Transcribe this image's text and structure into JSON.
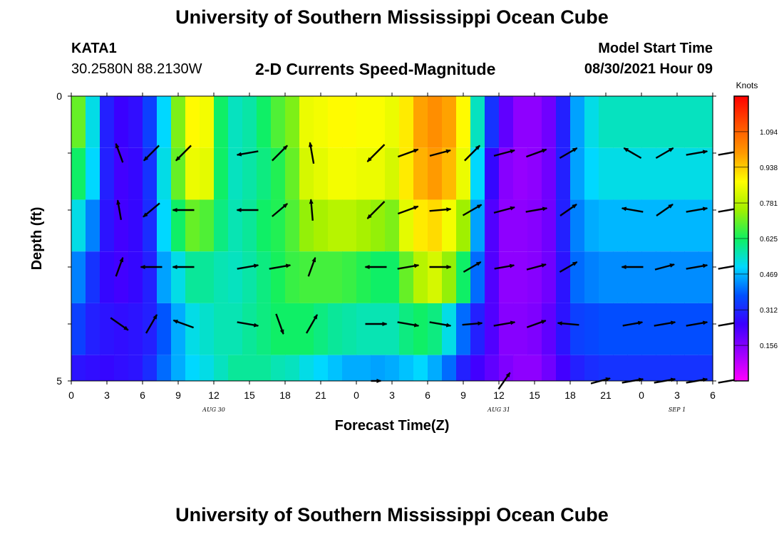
{
  "header": {
    "title": "University of Southern Mississippi Ocean Cube",
    "station_id": "KATA1",
    "coordinates": "30.2580N  88.2130W",
    "subtitle": "2-D Currents Speed-Magnitude",
    "model_start_label": "Model Start Time",
    "model_start_value": "08/30/2021 Hour 09",
    "footer_title": "University of Southern Mississippi Ocean Cube"
  },
  "colors": {
    "colormap": [
      "#ff00ff",
      "#9a00ff",
      "#3a00ff",
      "#0050ff",
      "#00d8ff",
      "#10f060",
      "#a0f000",
      "#ffff00",
      "#ff9a00",
      "#ff5000",
      "#ff0000"
    ]
  },
  "chart_data": {
    "type": "heatmap",
    "title": "2-D Currents Speed-Magnitude",
    "xlabel": "Forecast Time(Z)",
    "ylabel": "Depth (ft)",
    "x_ticks": [
      "0",
      "3",
      "6",
      "9",
      "12",
      "15",
      "18",
      "21",
      "0",
      "3",
      "6",
      "9",
      "12",
      "15",
      "18",
      "21",
      "0",
      "3",
      "6"
    ],
    "date_labels": [
      {
        "text": "AUG 30",
        "tick_index": 4
      },
      {
        "text": "AUG 31",
        "tick_index": 12
      },
      {
        "text": "SEP 1",
        "tick_index": 17
      }
    ],
    "y_ticks": [
      "0",
      "",
      "",
      "",
      "",
      "5"
    ],
    "ylim": [
      0,
      5
    ],
    "colorbar": {
      "label": "Knots",
      "range": [
        0.0,
        1.25
      ],
      "ticks": [
        "1.094",
        "0.938",
        "0.781",
        "0.625",
        "0.469",
        "0.312",
        "0.156"
      ]
    },
    "speed_knots": [
      [
        0.7,
        0.52,
        0.3,
        0.25,
        0.27,
        0.35,
        0.5,
        0.72,
        0.88,
        0.86,
        0.62,
        0.55,
        0.57,
        0.62,
        0.68,
        0.72,
        0.85,
        0.86,
        0.88,
        0.88,
        0.87,
        0.87,
        0.85,
        0.9,
        0.99,
        1.02,
        0.99,
        0.88,
        0.55,
        0.33,
        0.2,
        0.14,
        0.14,
        0.18,
        0.3,
        0.45,
        0.52,
        0.55,
        0.55,
        0.55,
        0.55,
        0.55,
        0.55,
        0.55,
        0.55
      ],
      [
        0.62,
        0.5,
        0.3,
        0.24,
        0.26,
        0.33,
        0.52,
        0.7,
        0.85,
        0.84,
        0.62,
        0.55,
        0.57,
        0.6,
        0.64,
        0.7,
        0.82,
        0.84,
        0.86,
        0.86,
        0.85,
        0.85,
        0.82,
        0.9,
        0.97,
        1.0,
        0.96,
        0.85,
        0.5,
        0.26,
        0.15,
        0.13,
        0.14,
        0.18,
        0.3,
        0.45,
        0.5,
        0.52,
        0.52,
        0.52,
        0.52,
        0.52,
        0.52,
        0.52,
        0.52
      ],
      [
        0.52,
        0.42,
        0.28,
        0.24,
        0.26,
        0.32,
        0.5,
        0.62,
        0.7,
        0.68,
        0.6,
        0.56,
        0.58,
        0.62,
        0.64,
        0.68,
        0.74,
        0.76,
        0.78,
        0.78,
        0.76,
        0.74,
        0.72,
        0.84,
        0.9,
        0.92,
        0.86,
        0.75,
        0.45,
        0.22,
        0.14,
        0.14,
        0.15,
        0.18,
        0.3,
        0.42,
        0.46,
        0.47,
        0.47,
        0.47,
        0.47,
        0.47,
        0.47,
        0.47,
        0.47
      ],
      [
        0.42,
        0.33,
        0.26,
        0.24,
        0.26,
        0.3,
        0.45,
        0.52,
        0.58,
        0.58,
        0.56,
        0.55,
        0.57,
        0.6,
        0.63,
        0.66,
        0.67,
        0.67,
        0.67,
        0.66,
        0.64,
        0.62,
        0.62,
        0.7,
        0.78,
        0.82,
        0.74,
        0.62,
        0.4,
        0.22,
        0.14,
        0.14,
        0.15,
        0.18,
        0.28,
        0.4,
        0.42,
        0.43,
        0.43,
        0.43,
        0.43,
        0.43,
        0.43,
        0.43,
        0.43
      ],
      [
        0.35,
        0.3,
        0.28,
        0.27,
        0.28,
        0.3,
        0.38,
        0.46,
        0.52,
        0.54,
        0.56,
        0.56,
        0.58,
        0.6,
        0.62,
        0.62,
        0.62,
        0.6,
        0.58,
        0.57,
        0.56,
        0.56,
        0.56,
        0.6,
        0.62,
        0.6,
        0.52,
        0.4,
        0.3,
        0.22,
        0.15,
        0.15,
        0.16,
        0.2,
        0.28,
        0.35,
        0.36,
        0.37,
        0.37,
        0.37,
        0.37,
        0.37,
        0.37,
        0.37,
        0.37
      ],
      [
        0.28,
        0.27,
        0.26,
        0.27,
        0.28,
        0.32,
        0.4,
        0.46,
        0.5,
        0.52,
        0.55,
        0.58,
        0.58,
        0.58,
        0.56,
        0.55,
        0.52,
        0.5,
        0.48,
        0.46,
        0.46,
        0.45,
        0.46,
        0.48,
        0.5,
        0.46,
        0.4,
        0.3,
        0.24,
        0.2,
        0.16,
        0.14,
        0.14,
        0.18,
        0.24,
        0.3,
        0.32,
        0.33,
        0.33,
        0.33,
        0.33,
        0.33,
        0.33,
        0.33,
        0.33
      ]
    ],
    "vectors": [
      {
        "row": 1,
        "t": [
          1,
          2,
          3,
          5,
          6,
          7,
          9,
          10,
          11,
          12,
          13,
          14,
          15,
          17,
          18,
          19,
          20
        ],
        "dir_deg": [
          110,
          225,
          225,
          190,
          45,
          100,
          225,
          20,
          15,
          45,
          15,
          20,
          30,
          150,
          30,
          10,
          10
        ],
        "len": [
          28,
          30,
          30,
          30,
          30,
          30,
          34,
          30,
          30,
          30,
          30,
          30,
          28,
          28,
          28,
          30,
          30
        ]
      },
      {
        "row": 2,
        "t": [
          1,
          2,
          3,
          5,
          6,
          7,
          9,
          10,
          11,
          12,
          13,
          14,
          15,
          17,
          18,
          19,
          20
        ],
        "dir_deg": [
          100,
          220,
          180,
          180,
          40,
          95,
          225,
          20,
          5,
          30,
          15,
          10,
          35,
          170,
          35,
          10,
          10
        ],
        "len": [
          28,
          30,
          30,
          30,
          28,
          30,
          34,
          30,
          30,
          30,
          30,
          30,
          28,
          30,
          28,
          30,
          30
        ]
      },
      {
        "row": 3,
        "t": [
          1,
          2,
          3,
          5,
          6,
          7,
          9,
          10,
          11,
          12,
          13,
          14,
          15,
          17,
          18,
          19,
          20
        ],
        "dir_deg": [
          70,
          180,
          180,
          10,
          10,
          70,
          180,
          10,
          0,
          30,
          10,
          15,
          30,
          180,
          15,
          10,
          10
        ],
        "len": [
          28,
          30,
          30,
          30,
          30,
          28,
          30,
          30,
          30,
          28,
          28,
          28,
          28,
          30,
          28,
          30,
          30
        ]
      },
      {
        "row": 4,
        "t": [
          1,
          2,
          3,
          5,
          6,
          7,
          9,
          10,
          11,
          12,
          13,
          14,
          15,
          17,
          18,
          19,
          20
        ],
        "dir_deg": [
          -35,
          60,
          160,
          -10,
          -70,
          60,
          0,
          -10,
          -10,
          5,
          10,
          20,
          175,
          10,
          10,
          10,
          10
        ],
        "len": [
          30,
          30,
          30,
          30,
          30,
          30,
          30,
          30,
          30,
          28,
          30,
          28,
          30,
          28,
          30,
          30,
          30
        ]
      },
      {
        "row": 5,
        "t": [
          9,
          13,
          16,
          17,
          18,
          19,
          20
        ],
        "dir_deg": [
          0,
          55,
          15,
          10,
          10,
          10,
          10
        ],
        "len": [
          14,
          28,
          28,
          30,
          30,
          30,
          30
        ]
      }
    ]
  }
}
